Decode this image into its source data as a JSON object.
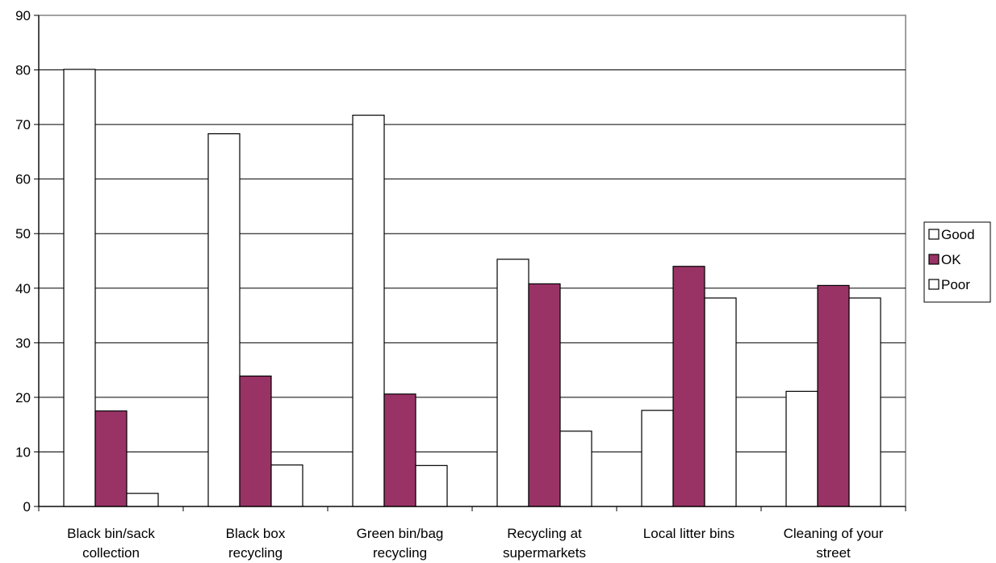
{
  "chart_data": {
    "type": "bar",
    "title": "",
    "xlabel": "",
    "ylabel": "",
    "ylim": [
      0,
      90
    ],
    "yticks": [
      0,
      10,
      20,
      30,
      40,
      50,
      60,
      70,
      80,
      90
    ],
    "grid": true,
    "legend_position": "right",
    "categories": [
      [
        "Black bin/sack",
        "collection"
      ],
      [
        "Black box",
        "recycling"
      ],
      [
        "Green bin/bag",
        "recycling"
      ],
      [
        "Recycling at",
        "supermarkets"
      ],
      [
        "Local litter bins"
      ],
      [
        "Cleaning of your",
        "street"
      ]
    ],
    "series": [
      {
        "name": "Good",
        "color": "#ffffff",
        "values": [
          80.1,
          68.3,
          71.7,
          45.3,
          17.6,
          21.1
        ]
      },
      {
        "name": "OK",
        "color": "#993366",
        "values": [
          17.5,
          23.9,
          20.6,
          40.8,
          44.0,
          40.5
        ]
      },
      {
        "name": "Poor",
        "color": "#ffffff",
        "values": [
          2.4,
          7.6,
          7.5,
          13.8,
          38.2,
          38.2
        ]
      }
    ]
  }
}
